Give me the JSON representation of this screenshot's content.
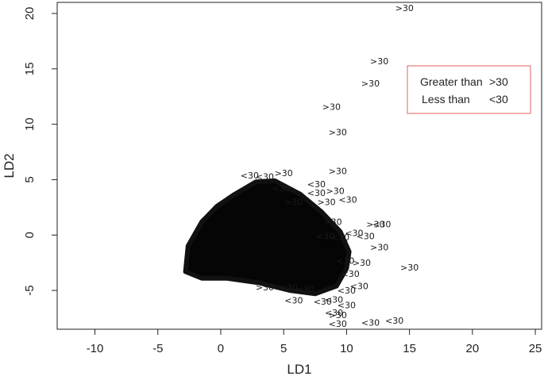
{
  "chart_data": {
    "type": "scatter",
    "xlabel": "LD1",
    "ylabel": "LD2",
    "xlim": [
      -13,
      25.5
    ],
    "ylim": [
      -8.5,
      21
    ],
    "xticks": [
      -10,
      -5,
      0,
      5,
      10,
      15,
      20,
      25
    ],
    "yticks": [
      -5,
      0,
      5,
      10,
      15,
      20
    ],
    "grid": false,
    "legend": {
      "placement": "top-right",
      "border_color": "#e06060",
      "entries": [
        {
          "label": "Greater than",
          "symbol": ">30"
        },
        {
          "label": "Less than",
          "symbol": "<30"
        }
      ]
    },
    "cluster": {
      "polygon": [
        [
          -2.8,
          -3.3
        ],
        [
          -2.6,
          -1.0
        ],
        [
          -1.5,
          1.2
        ],
        [
          -0.3,
          2.6
        ],
        [
          1.0,
          3.6
        ],
        [
          2.8,
          4.8
        ],
        [
          4.3,
          4.9
        ],
        [
          6.3,
          3.7
        ],
        [
          8.0,
          2.1
        ],
        [
          9.5,
          0.3
        ],
        [
          10.2,
          -1.5
        ],
        [
          10.0,
          -3.0
        ],
        [
          9.2,
          -4.6
        ],
        [
          7.5,
          -5.3
        ],
        [
          5.5,
          -5.0
        ],
        [
          3.0,
          -4.3
        ],
        [
          0.5,
          -3.9
        ],
        [
          -1.5,
          -3.9
        ]
      ]
    },
    "labeled_points": [
      {
        "x": 14.6,
        "y": 20.5,
        "label": ">30"
      },
      {
        "x": 12.6,
        "y": 15.7,
        "label": ">30"
      },
      {
        "x": 11.9,
        "y": 13.7,
        "label": ">30"
      },
      {
        "x": 8.8,
        "y": 11.6,
        "label": ">30"
      },
      {
        "x": 9.3,
        "y": 9.3,
        "label": ">30"
      },
      {
        "x": 9.3,
        "y": 5.8,
        "label": ">30"
      },
      {
        "x": 3.5,
        "y": 5.3,
        "label": "<30"
      },
      {
        "x": 5.0,
        "y": 5.6,
        "label": ">30"
      },
      {
        "x": 2.3,
        "y": 5.4,
        "label": "<30"
      },
      {
        "x": 7.6,
        "y": 4.6,
        "label": "<30"
      },
      {
        "x": 4.8,
        "y": 4.2,
        "label": "<30"
      },
      {
        "x": 7.6,
        "y": 3.8,
        "label": "<30"
      },
      {
        "x": 9.1,
        "y": 4.0,
        "label": ">30"
      },
      {
        "x": 8.4,
        "y": 3.0,
        "label": ">30"
      },
      {
        "x": 5.8,
        "y": 3.0,
        "label": ">30"
      },
      {
        "x": 10.1,
        "y": 3.2,
        "label": "<30"
      },
      {
        "x": 12.3,
        "y": 1.0,
        "label": ">30"
      },
      {
        "x": 12.8,
        "y": 1.0,
        "label": "<30"
      },
      {
        "x": 8.9,
        "y": 1.2,
        "label": ">30"
      },
      {
        "x": 10.6,
        "y": 0.2,
        "label": "<30"
      },
      {
        "x": 11.5,
        "y": -0.1,
        "label": "<30"
      },
      {
        "x": 12.6,
        "y": -1.1,
        "label": ">30"
      },
      {
        "x": 8.3,
        "y": -0.1,
        "label": "<30"
      },
      {
        "x": 9.5,
        "y": -0.2,
        "label": "<30"
      },
      {
        "x": 11.2,
        "y": -2.5,
        "label": ">30"
      },
      {
        "x": 10.3,
        "y": -3.5,
        "label": "<30"
      },
      {
        "x": 15.0,
        "y": -2.9,
        "label": ">30"
      },
      {
        "x": 11.0,
        "y": -4.6,
        "label": "<30"
      },
      {
        "x": 10.0,
        "y": -5.0,
        "label": "<30"
      },
      {
        "x": 9.0,
        "y": -5.8,
        "label": "<30"
      },
      {
        "x": 10.0,
        "y": -6.3,
        "label": "<30"
      },
      {
        "x": 8.1,
        "y": -6.0,
        "label": "<30"
      },
      {
        "x": 5.8,
        "y": -5.9,
        "label": "<30"
      },
      {
        "x": 9.0,
        "y": -7.0,
        "label": "<30"
      },
      {
        "x": 9.3,
        "y": -7.2,
        "label": ">30"
      },
      {
        "x": 9.3,
        "y": -8.0,
        "label": "<30"
      },
      {
        "x": 11.9,
        "y": -7.9,
        "label": "<30"
      },
      {
        "x": 13.8,
        "y": -7.7,
        "label": "<30"
      },
      {
        "x": 3.5,
        "y": -4.7,
        "label": ">30"
      },
      {
        "x": 5.4,
        "y": -4.7,
        "label": "<30"
      },
      {
        "x": 6.7,
        "y": -4.9,
        "label": "<30"
      },
      {
        "x": 9.9,
        "y": -2.3,
        "label": "<30"
      }
    ]
  }
}
